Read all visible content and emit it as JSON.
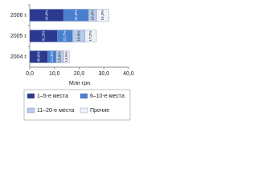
{
  "chart_data": {
    "type": "stacked-bar-horizontal",
    "categories": [
      "2006 г.",
      "2005 г.",
      "2004 г."
    ],
    "series": [
      {
        "name": "1–5-е места",
        "color": "#2b3990",
        "values": [
          13.7,
          11.2,
          7.3
        ],
        "share_labels": [
          "42,8%",
          "41,3%",
          "45,6%"
        ]
      },
      {
        "name": "6–10-е места",
        "color": "#4a7fd0",
        "values": [
          10.1,
          6.1,
          3.4
        ],
        "share_labels": [
          "31,5%",
          "22,7%",
          "21,3%"
        ]
      },
      {
        "name": "11–20-е места",
        "color": "#b8cbea",
        "values": [
          3.3,
          5.1,
          3.0
        ],
        "share_labels": [
          "10,4%",
          "18,8%",
          "18,6%"
        ]
      },
      {
        "name": "Прочие",
        "color": "#eef2f9",
        "values": [
          4.9,
          4.6,
          2.3
        ],
        "share_labels": [
          "15,3%",
          "17,2%",
          "14,5%"
        ]
      }
    ],
    "xlabel": "Млн грн.",
    "xlim": [
      0,
      40
    ],
    "xticks": [
      {
        "value": 0,
        "label": "0,0"
      },
      {
        "value": 10,
        "label": "10,0"
      },
      {
        "value": 20,
        "label": "20,0"
      },
      {
        "value": 30,
        "label": "30,0"
      },
      {
        "value": 40,
        "label": "40,0"
      }
    ]
  }
}
